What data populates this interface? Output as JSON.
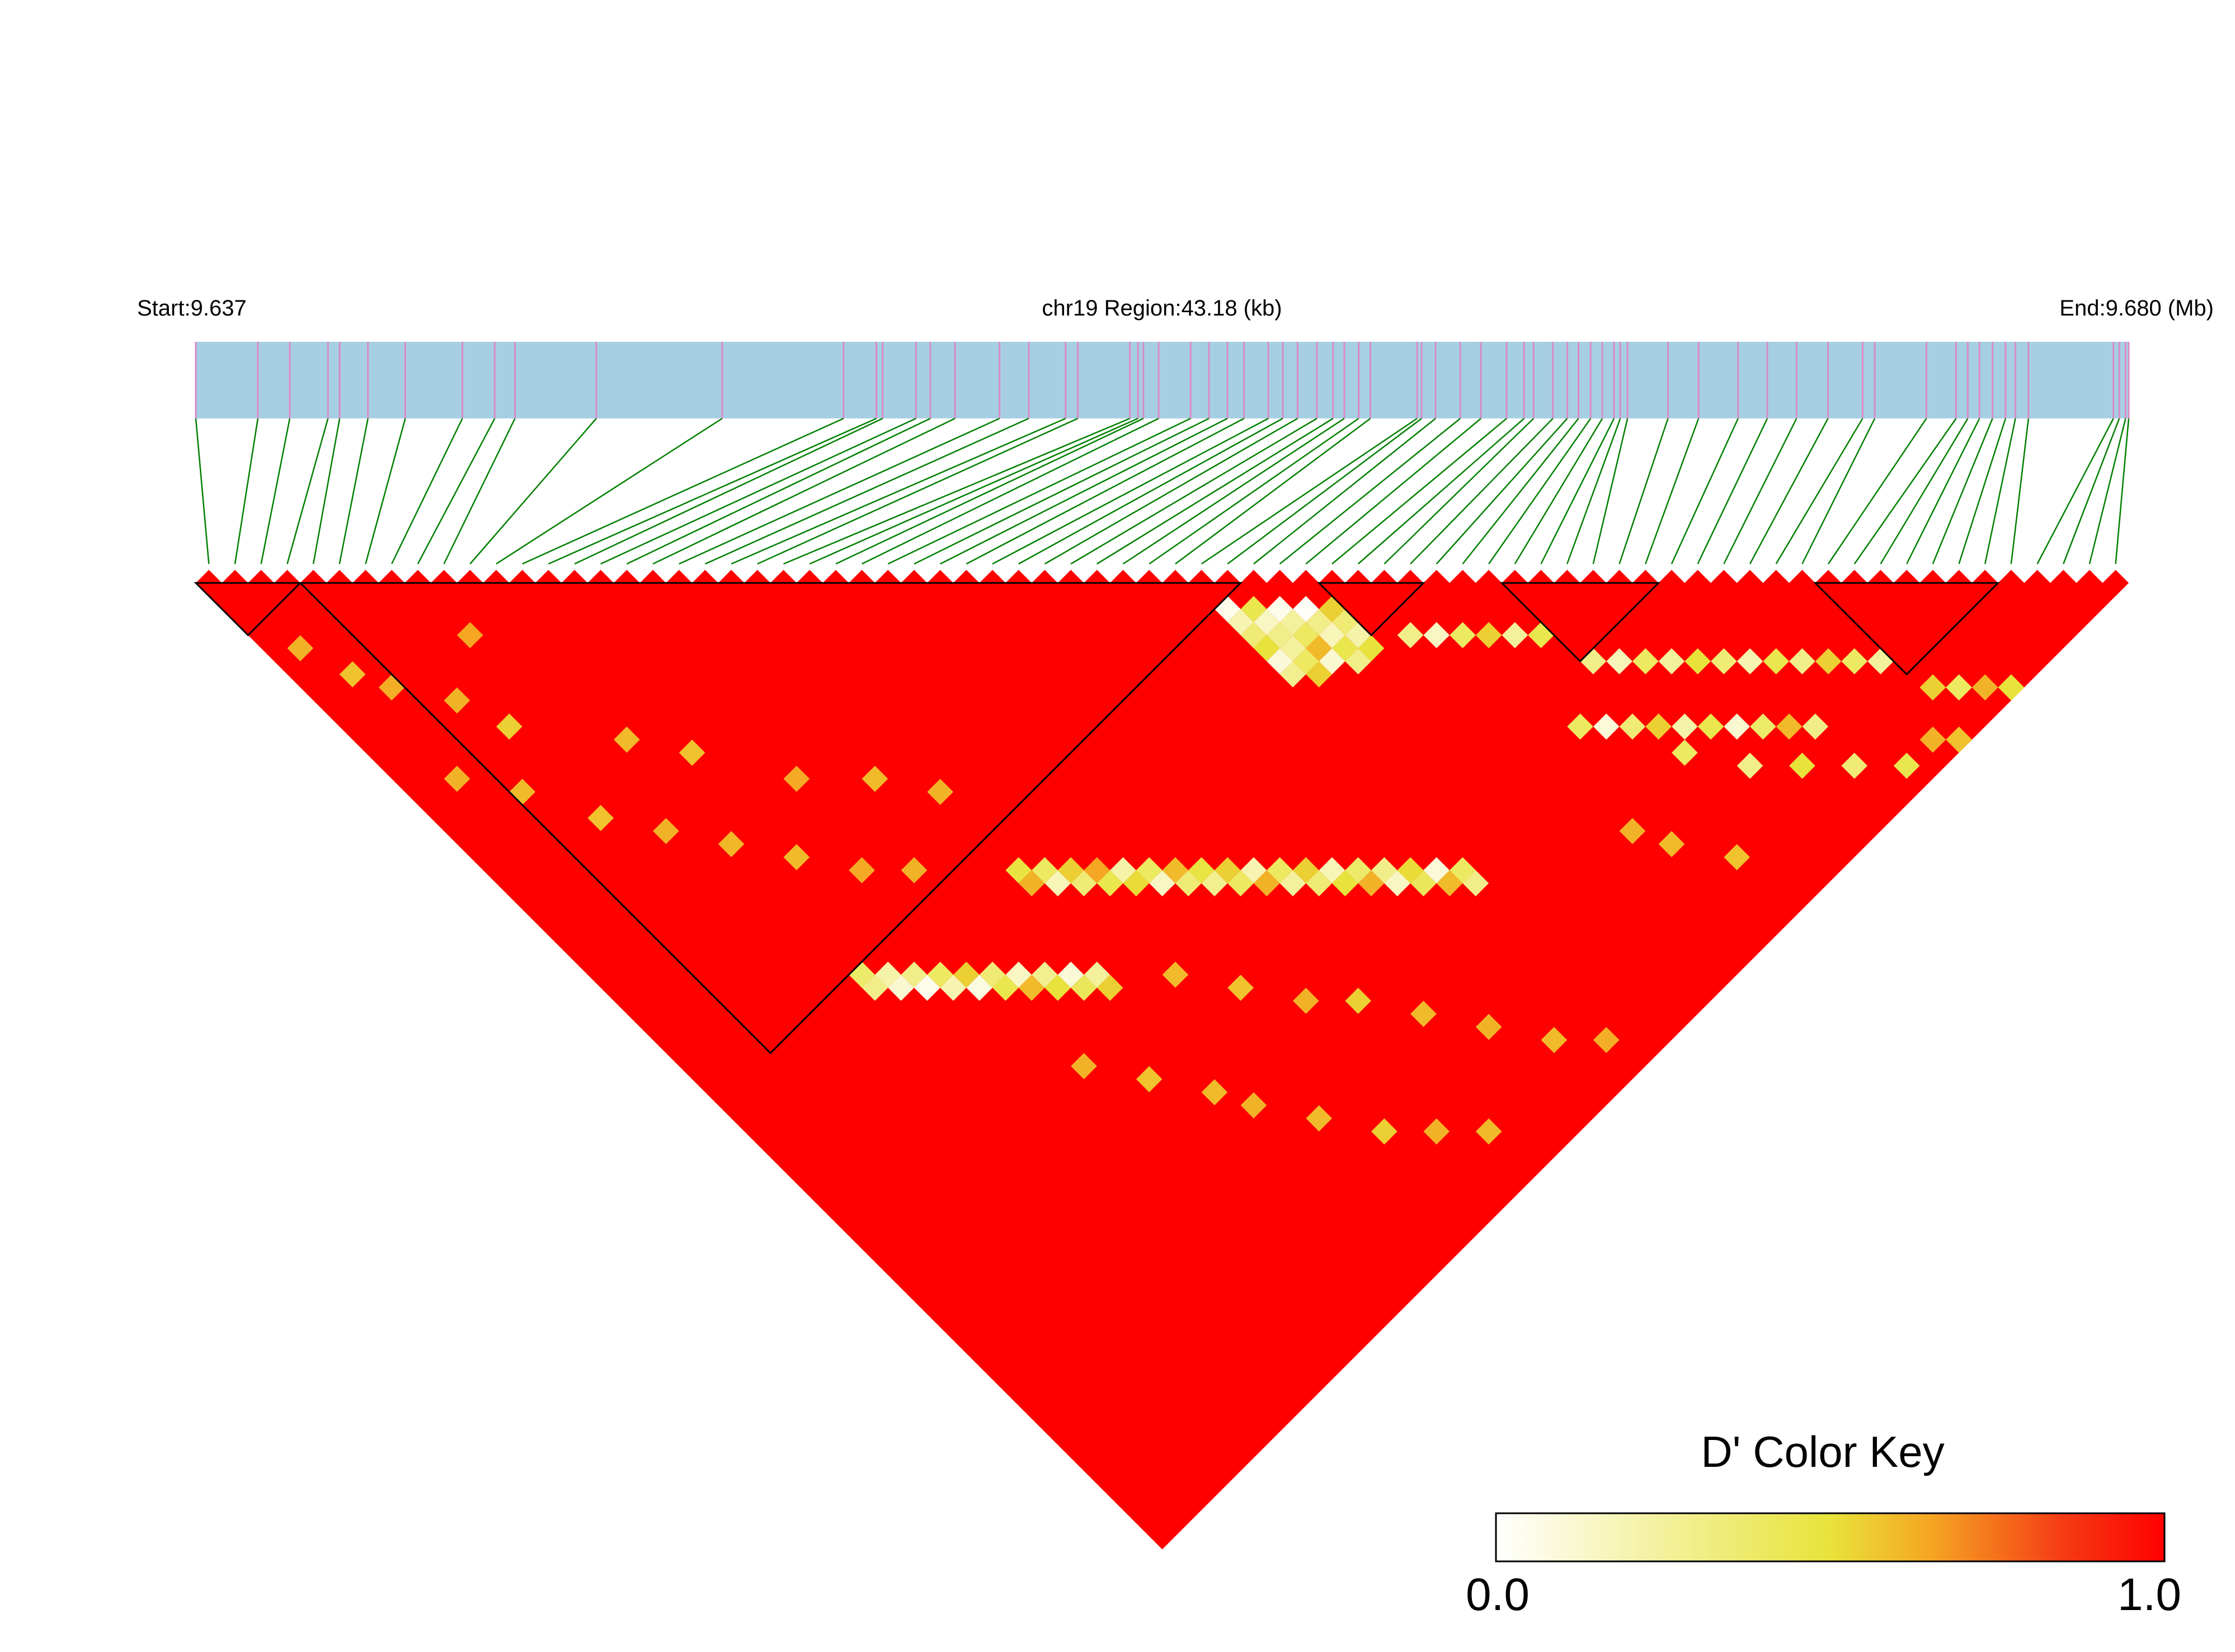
{
  "chart_data": {
    "type": "heatmap",
    "subtype": "LD triangle (D')",
    "header": {
      "start_label": "Start:9.637",
      "region_label": "chr19 Region:43.18 (kb)",
      "end_label": "End:9.680 (Mb)"
    },
    "region": {
      "start_mb": 9.637,
      "end_mb": 9.68,
      "length_kb": 43.18
    },
    "snp_count": 74,
    "snp_positions_mb": [
      9.637,
      9.63838,
      9.63909,
      9.63994,
      9.6402,
      9.64083,
      9.64166,
      9.64293,
      9.64365,
      9.6441,
      9.64591,
      9.64871,
      9.65141,
      9.65214,
      9.65228,
      9.65302,
      9.65334,
      9.65389,
      9.65488,
      9.65553,
      9.65635,
      9.65662,
      9.65778,
      9.65796,
      9.65808,
      9.65842,
      9.65913,
      9.65954,
      9.65995,
      9.66032,
      9.66086,
      9.66118,
      9.66151,
      9.66194,
      9.6623,
      9.66255,
      9.66287,
      9.66313,
      9.66417,
      9.66427,
      9.66458,
      9.66513,
      9.66559,
      9.66616,
      9.66655,
      9.66676,
      9.66719,
      9.66751,
      9.66776,
      9.66803,
      9.66829,
      9.66855,
      9.66869,
      9.66885,
      9.66975,
      9.67043,
      9.67131,
      9.67196,
      9.67261,
      9.67331,
      9.67408,
      9.67435,
      9.6755,
      9.67616,
      9.67642,
      9.67668,
      9.67697,
      9.67726,
      9.67748,
      9.67777,
      9.67966,
      9.67979,
      9.67993,
      9.68
    ],
    "ld_blocks": [
      [
        0,
        3
      ],
      [
        4,
        39
      ],
      [
        43,
        46
      ],
      [
        50,
        55
      ],
      [
        62,
        68
      ]
    ],
    "background_dprime": 1.0,
    "cells": [
      [
        10,
        40,
        0.38
      ],
      [
        10,
        41,
        0.3
      ],
      [
        11,
        41,
        0.22
      ],
      [
        11,
        42,
        0.12
      ],
      [
        12,
        42,
        0.3
      ],
      [
        12,
        43,
        0.05
      ],
      [
        13,
        43,
        0.4
      ],
      [
        13,
        44,
        0.2
      ],
      [
        14,
        44,
        0.55
      ],
      [
        14,
        45,
        0.08
      ],
      [
        15,
        45,
        0.35
      ],
      [
        15,
        46,
        0.45
      ],
      [
        16,
        46,
        0.15
      ],
      [
        16,
        47,
        0.6
      ],
      [
        17,
        47,
        0.28
      ],
      [
        17,
        48,
        0.5
      ],
      [
        18,
        48,
        0.1
      ],
      [
        18,
        49,
        0.42
      ],
      [
        19,
        49,
        0.25
      ],
      [
        19,
        50,
        0.55
      ],
      [
        20,
        42,
        0.48
      ],
      [
        20,
        43,
        0.62
      ],
      [
        21,
        43,
        0.4
      ],
      [
        21,
        44,
        0.18
      ],
      [
        22,
        44,
        0.55
      ],
      [
        22,
        45,
        0.35
      ],
      [
        23,
        45,
        0.65
      ],
      [
        23,
        46,
        0.45
      ],
      [
        24,
        46,
        0.22
      ],
      [
        24,
        47,
        0.52
      ],
      [
        25,
        47,
        0.4
      ],
      [
        25,
        48,
        0.15
      ],
      [
        26,
        48,
        0.6
      ],
      [
        26,
        49,
        0.35
      ],
      [
        27,
        49,
        0.48
      ],
      [
        27,
        50,
        0.28
      ],
      [
        28,
        50,
        0.55
      ],
      [
        28,
        51,
        0.4
      ],
      [
        29,
        51,
        0.2
      ],
      [
        29,
        52,
        0.62
      ],
      [
        30,
        52,
        0.4
      ],
      [
        30,
        53,
        0.25
      ],
      [
        31,
        53,
        0.55
      ],
      [
        31,
        54,
        0.35
      ],
      [
        32,
        54,
        0.18
      ],
      [
        32,
        55,
        0.5
      ],
      [
        33,
        55,
        0.38
      ],
      [
        33,
        56,
        0.62
      ],
      [
        34,
        56,
        0.3
      ],
      [
        34,
        57,
        0.15
      ],
      [
        35,
        57,
        0.52
      ],
      [
        35,
        58,
        0.42
      ],
      [
        36,
        58,
        0.1
      ],
      [
        36,
        59,
        0.6
      ],
      [
        37,
        59,
        0.4
      ],
      [
        37,
        60,
        0.3
      ],
      [
        38,
        40,
        0.05
      ],
      [
        38,
        41,
        0.2
      ],
      [
        38,
        42,
        0.35
      ],
      [
        39,
        41,
        0.45
      ],
      [
        39,
        42,
        0.15
      ],
      [
        39,
        43,
        0.3
      ],
      [
        38,
        43,
        0.5
      ],
      [
        39,
        44,
        0.25
      ],
      [
        38,
        44,
        0.1
      ],
      [
        39,
        45,
        0.4
      ],
      [
        38,
        45,
        0.28
      ],
      [
        39,
        46,
        0.55
      ],
      [
        40,
        42,
        0.05
      ],
      [
        40,
        43,
        0.25
      ],
      [
        41,
        43,
        0.02
      ],
      [
        41,
        44,
        0.3
      ],
      [
        42,
        44,
        0.55
      ],
      [
        40,
        44,
        0.4
      ],
      [
        41,
        45,
        0.18
      ],
      [
        42,
        45,
        0.35
      ],
      [
        40,
        45,
        0.6
      ],
      [
        41,
        46,
        0.45
      ],
      [
        42,
        46,
        0.22
      ],
      [
        42,
        47,
        0.5
      ],
      [
        41,
        47,
        0.3
      ],
      [
        40,
        46,
        0.12
      ],
      [
        44,
        48,
        0.3
      ],
      [
        45,
        49,
        0.15
      ],
      [
        46,
        50,
        0.4
      ],
      [
        47,
        51,
        0.55
      ],
      [
        48,
        52,
        0.25
      ],
      [
        49,
        53,
        0.45
      ],
      [
        50,
        56,
        0.3
      ],
      [
        51,
        57,
        0.18
      ],
      [
        52,
        58,
        0.4
      ],
      [
        53,
        59,
        0.25
      ],
      [
        54,
        60,
        0.5
      ],
      [
        55,
        61,
        0.35
      ],
      [
        56,
        62,
        0.2
      ],
      [
        57,
        63,
        0.45
      ],
      [
        58,
        64,
        0.3
      ],
      [
        59,
        65,
        0.55
      ],
      [
        60,
        66,
        0.4
      ],
      [
        61,
        67,
        0.25
      ],
      [
        47,
        58,
        0.4
      ],
      [
        48,
        59,
        0.1
      ],
      [
        49,
        60,
        0.35
      ],
      [
        50,
        61,
        0.55
      ],
      [
        51,
        62,
        0.22
      ],
      [
        52,
        63,
        0.45
      ],
      [
        53,
        64,
        0.12
      ],
      [
        54,
        65,
        0.38
      ],
      [
        55,
        66,
        0.6
      ],
      [
        56,
        67,
        0.3
      ],
      [
        5,
        14,
        0.62
      ],
      [
        6,
        17,
        0.55
      ],
      [
        8,
        12,
        0.65
      ],
      [
        10,
        22,
        0.6
      ],
      [
        12,
        25,
        0.58
      ],
      [
        15,
        30,
        0.64
      ],
      [
        18,
        33,
        0.6
      ],
      [
        20,
        36,
        0.62
      ],
      [
        1,
        6,
        0.62
      ],
      [
        2,
        9,
        0.58
      ],
      [
        3,
        11,
        0.63
      ],
      [
        2,
        17,
        0.62
      ],
      [
        4,
        20,
        0.6
      ],
      [
        6,
        24,
        0.58
      ],
      [
        8,
        27,
        0.62
      ],
      [
        10,
        30,
        0.61
      ],
      [
        12,
        33,
        0.6
      ],
      [
        14,
        36,
        0.64
      ],
      [
        16,
        38,
        0.62
      ],
      [
        22,
        52,
        0.6
      ],
      [
        24,
        55,
        0.58
      ],
      [
        26,
        58,
        0.62
      ],
      [
        28,
        60,
        0.55
      ],
      [
        30,
        63,
        0.6
      ],
      [
        32,
        66,
        0.62
      ],
      [
        34,
        69,
        0.6
      ],
      [
        36,
        71,
        0.63
      ],
      [
        20,
        60,
        0.62
      ],
      [
        22,
        63,
        0.6
      ],
      [
        24,
        66,
        0.55
      ],
      [
        26,
        68,
        0.62
      ],
      [
        28,
        70,
        0.6
      ],
      [
        15,
        52,
        0.62
      ],
      [
        17,
        55,
        0.58
      ],
      [
        19,
        58,
        0.6
      ],
      [
        50,
        63,
        0.4
      ],
      [
        52,
        66,
        0.3
      ],
      [
        54,
        68,
        0.5
      ],
      [
        56,
        70,
        0.35
      ],
      [
        58,
        72,
        0.45
      ],
      [
        45,
        64,
        0.62
      ],
      [
        46,
        66,
        0.6
      ],
      [
        48,
        69,
        0.58
      ],
      [
        62,
        70,
        0.55
      ],
      [
        63,
        71,
        0.4
      ],
      [
        64,
        72,
        0.62
      ],
      [
        65,
        73,
        0.5
      ],
      [
        60,
        72,
        0.62
      ],
      [
        61,
        73,
        0.58
      ]
    ],
    "color_key": {
      "title": "D' Color Key",
      "min_label": "0.0",
      "max_label": "1.0",
      "range": [
        0,
        1
      ],
      "stops": [
        [
          "0.0",
          "#ffffff"
        ],
        [
          "0.5",
          "#e8e33a"
        ],
        [
          "0.65",
          "#f5a623"
        ],
        [
          "0.85",
          "#f53a14"
        ],
        [
          "1.0",
          "#ff0000"
        ]
      ]
    },
    "colors": {
      "gene_bar": "#a6cfe3",
      "snp_tick": "#d98bc8",
      "connector": "#008000",
      "ld_high": "#ff0000"
    }
  }
}
